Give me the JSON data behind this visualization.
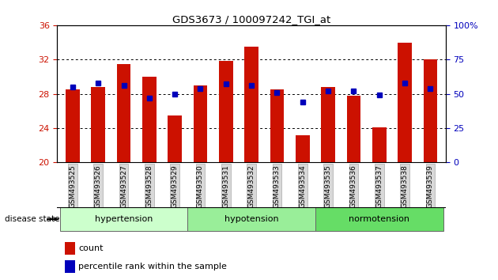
{
  "title": "GDS3673 / 100097242_TGI_at",
  "samples": [
    "GSM493525",
    "GSM493526",
    "GSM493527",
    "GSM493528",
    "GSM493529",
    "GSM493530",
    "GSM493531",
    "GSM493532",
    "GSM493533",
    "GSM493534",
    "GSM493535",
    "GSM493536",
    "GSM493537",
    "GSM493538",
    "GSM493539"
  ],
  "counts": [
    28.5,
    28.8,
    31.5,
    30.0,
    25.5,
    29.0,
    31.8,
    33.5,
    28.5,
    23.2,
    28.8,
    27.8,
    24.1,
    34.0,
    32.0
  ],
  "percentiles": [
    55,
    58,
    56,
    47,
    50,
    54,
    57,
    56,
    51,
    44,
    52,
    52,
    49,
    58,
    54
  ],
  "groups": [
    {
      "label": "hypertension",
      "indices": [
        0,
        1,
        2,
        3,
        4
      ],
      "color": "#ccffcc"
    },
    {
      "label": "hypotension",
      "indices": [
        5,
        6,
        7,
        8,
        9
      ],
      "color": "#99ee99"
    },
    {
      "label": "normotension",
      "indices": [
        10,
        11,
        12,
        13,
        14
      ],
      "color": "#66dd66"
    }
  ],
  "ylim_left": [
    20,
    36
  ],
  "ylim_right": [
    0,
    100
  ],
  "yticks_left": [
    20,
    24,
    28,
    32,
    36
  ],
  "yticks_right": [
    0,
    25,
    50,
    75,
    100
  ],
  "bar_color": "#cc1100",
  "dot_color": "#0000bb",
  "bar_width": 0.55,
  "label_color_left": "#cc1100",
  "label_color_right": "#0000bb"
}
